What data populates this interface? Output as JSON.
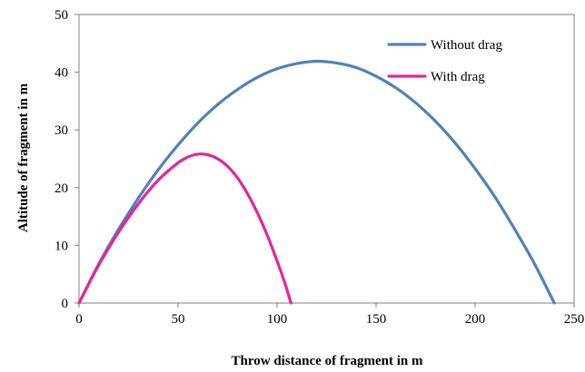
{
  "chart_data": {
    "type": "line",
    "title": "",
    "xlabel": "Throw distance of fragment in m",
    "ylabel": "Altitude of fragment in m",
    "xlim": [
      0,
      250
    ],
    "ylim": [
      0,
      50
    ],
    "x_ticks": [
      "0",
      "50",
      "100",
      "150",
      "200",
      "250"
    ],
    "y_ticks": [
      "0",
      "10",
      "20",
      "30",
      "40",
      "50"
    ],
    "grid": false,
    "legend_position": "top-right",
    "series": [
      {
        "name": "Without drag",
        "color": "#4f81bd",
        "x": [
          0,
          10,
          20,
          30,
          40,
          50,
          60,
          70,
          80,
          90,
          100,
          110,
          120,
          130,
          140,
          150,
          160,
          170,
          180,
          190,
          200,
          210,
          220,
          230,
          240
        ],
        "y": [
          0,
          6.8,
          12.8,
          18.2,
          23.1,
          27.4,
          31.2,
          34.4,
          37.0,
          39.1,
          40.6,
          41.5,
          41.9,
          41.6,
          40.8,
          39.3,
          37.3,
          34.7,
          31.5,
          27.7,
          23.3,
          18.4,
          12.8,
          6.8,
          0
        ]
      },
      {
        "name": "With drag",
        "color": "#e5259a",
        "x": [
          0,
          10,
          20,
          30,
          40,
          50,
          55,
          60,
          65,
          70,
          75,
          80,
          85,
          90,
          95,
          100,
          104,
          107
        ],
        "y": [
          0,
          6.6,
          12.3,
          17.2,
          21.3,
          24.3,
          25.3,
          25.8,
          25.7,
          25.0,
          23.7,
          21.7,
          19.0,
          15.7,
          11.8,
          7.3,
          3.4,
          0
        ]
      }
    ]
  }
}
